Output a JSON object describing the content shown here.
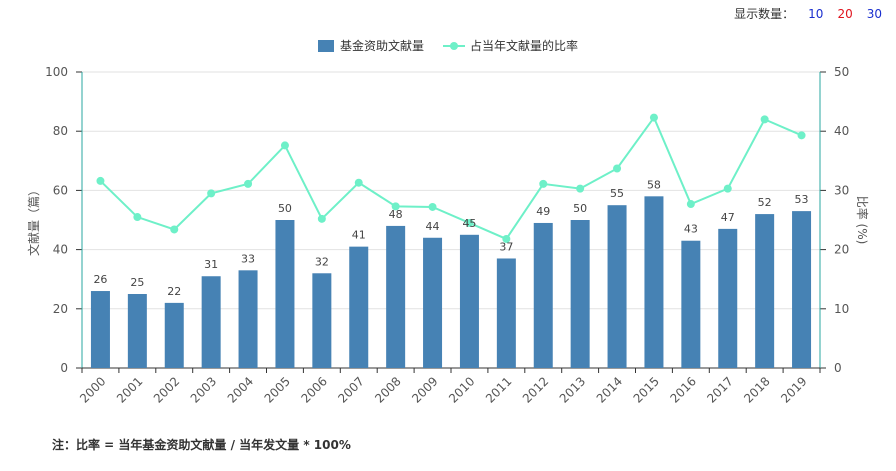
{
  "controls": {
    "label": "显示数量：",
    "options": [
      {
        "label": "10",
        "color": "#1a2fcf"
      },
      {
        "label": "20",
        "color": "#e0141e"
      },
      {
        "label": "30",
        "color": "#1a2fcf"
      }
    ]
  },
  "footnote": "注：比率 = 当年基金资助文献量 / 当年发文量 * 100%",
  "chart_data": {
    "type": "bar",
    "categories": [
      "2000",
      "2001",
      "2002",
      "2003",
      "2004",
      "2005",
      "2006",
      "2007",
      "2008",
      "2009",
      "2010",
      "2011",
      "2012",
      "2013",
      "2014",
      "2015",
      "2016",
      "2017",
      "2018",
      "2019"
    ],
    "series": [
      {
        "name": "基金资助文献量",
        "type": "bar",
        "axis": "left",
        "color": "#4682b4",
        "values": [
          26,
          25,
          22,
          31,
          33,
          50,
          32,
          41,
          48,
          44,
          45,
          37,
          49,
          50,
          55,
          58,
          43,
          47,
          52,
          53
        ]
      },
      {
        "name": "占当年文献量的比率",
        "type": "line",
        "axis": "right",
        "color": "#6ef0c8",
        "values": [
          31.6,
          25.5,
          23.4,
          29.5,
          31.1,
          37.6,
          25.2,
          31.3,
          27.3,
          27.2,
          24.5,
          21.8,
          31.1,
          30.3,
          33.7,
          42.3,
          27.7,
          30.3,
          42.0,
          39.3
        ]
      }
    ],
    "yleft": {
      "label": "文献量（篇）",
      "min": 0,
      "max": 100,
      "ticks": [
        0,
        20,
        40,
        60,
        80,
        100
      ]
    },
    "yright": {
      "label": "比率 (%)",
      "min": 0,
      "max": 50,
      "ticks": [
        0,
        10,
        20,
        30,
        40,
        50
      ]
    },
    "grid": true,
    "legend_position": "top-center"
  }
}
